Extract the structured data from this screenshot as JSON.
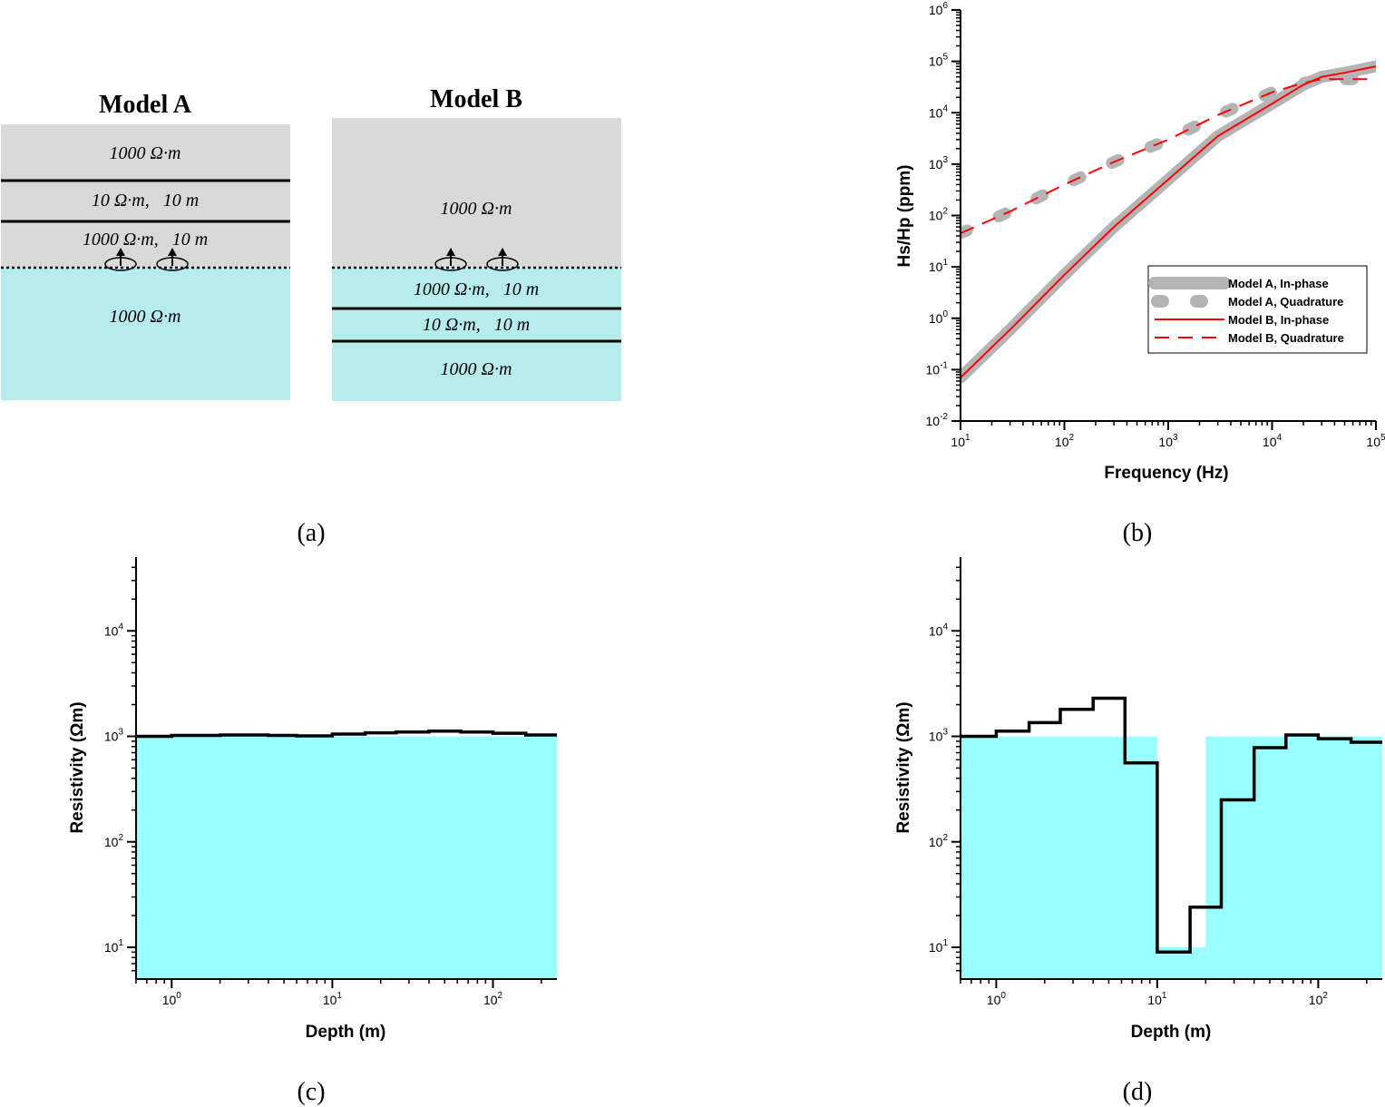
{
  "panel_a": {
    "caption": "(a)",
    "model_a": {
      "title": "Model A",
      "layers": [
        {
          "label": "1000 Ω·m",
          "medium": "air"
        },
        {
          "label": "10 Ω·m,   10 m",
          "medium": "air"
        },
        {
          "label": "1000 Ω·m,   10 m",
          "medium": "air"
        },
        {
          "label": "1000 Ω·m",
          "medium": "water"
        }
      ]
    },
    "model_b": {
      "title": "Model B",
      "layers": [
        {
          "label": "1000 Ω·m",
          "medium": "air"
        },
        {
          "label": "1000 Ω·m,   10 m",
          "medium": "water"
        },
        {
          "label": "10 Ω·m,   10 m",
          "medium": "water"
        },
        {
          "label": "1000 Ω·m",
          "medium": "water"
        }
      ]
    },
    "colors": {
      "air": "#d9d9d9",
      "water": "#b7ecec",
      "line": "#000000"
    }
  },
  "chart_data": [
    {
      "id": "b",
      "type": "line",
      "caption": "(b)",
      "xlabel": "Frequency (Hz)",
      "ylabel": "Hs/Hp (ppm)",
      "xscale": "log",
      "yscale": "log",
      "xlim": [
        10,
        100000
      ],
      "ylim": [
        0.01,
        1000000
      ],
      "xticks": [
        10,
        100,
        1000,
        10000,
        100000
      ],
      "yticks": [
        0.01,
        0.1,
        1,
        10,
        100,
        1000,
        10000,
        100000,
        1000000
      ],
      "legend_position": "bottom-right",
      "series": [
        {
          "name": "Model A, In-phase",
          "style": "thick-gray-solid",
          "color": "#b4b4b4",
          "x": [
            10,
            30,
            100,
            300,
            1000,
            3000,
            10000,
            20000,
            30000,
            50000,
            100000
          ],
          "y": [
            0.07,
            0.6,
            7,
            60,
            500,
            3500,
            15000,
            35000,
            50000,
            60000,
            80000
          ]
        },
        {
          "name": "Model A, Quadrature",
          "style": "thick-gray-dash",
          "color": "#b4b4b4",
          "x": [
            10,
            30,
            100,
            300,
            1000,
            3000,
            10000,
            20000,
            30000,
            50000,
            100000
          ],
          "y": [
            45,
            120,
            400,
            1100,
            3000,
            9000,
            25000,
            38000,
            45000,
            45000,
            45000
          ]
        },
        {
          "name": "Model B, In-phase",
          "style": "red-solid",
          "color": "#ff0000",
          "x": [
            10,
            30,
            100,
            300,
            1000,
            3000,
            10000,
            20000,
            30000,
            50000,
            100000
          ],
          "y": [
            0.07,
            0.6,
            7,
            60,
            500,
            3500,
            15000,
            35000,
            50000,
            60000,
            80000
          ]
        },
        {
          "name": "Model B, Quadrature",
          "style": "red-dash",
          "color": "#ff0000",
          "x": [
            10,
            30,
            100,
            300,
            1000,
            3000,
            10000,
            20000,
            30000,
            50000,
            100000
          ],
          "y": [
            45,
            120,
            400,
            1100,
            3000,
            9000,
            25000,
            38000,
            45000,
            45000,
            45000
          ]
        }
      ]
    },
    {
      "id": "c",
      "type": "area",
      "caption": "(c)",
      "xlabel": "Depth (m)",
      "ylabel": "Resistivity (Ωm)",
      "xscale": "log",
      "yscale": "log",
      "xlim": [
        0.6,
        250
      ],
      "ylim": [
        5,
        50000
      ],
      "xticks": [
        1,
        10,
        100
      ],
      "yticks": [
        10,
        100,
        1000,
        10000
      ],
      "true_model": {
        "color": "#99ffff",
        "x": [
          0.6,
          250
        ],
        "y": [
          1000,
          1000
        ]
      },
      "inverted_model": {
        "color": "#000000",
        "edges": [
          0.6,
          1,
          2,
          4,
          6,
          10,
          16,
          25,
          40,
          63,
          100,
          160,
          250
        ],
        "values": [
          1000,
          1020,
          1030,
          1020,
          1010,
          1050,
          1080,
          1100,
          1120,
          1100,
          1070,
          1030
        ]
      }
    },
    {
      "id": "d",
      "type": "area",
      "caption": "(d)",
      "xlabel": "Depth (m)",
      "ylabel": "Resistivity (Ωm)",
      "xscale": "log",
      "yscale": "log",
      "xlim": [
        0.6,
        250
      ],
      "ylim": [
        5,
        50000
      ],
      "xticks": [
        1,
        10,
        100
      ],
      "yticks": [
        10,
        100,
        1000,
        10000
      ],
      "true_model": {
        "color": "#99ffff",
        "x": [
          0.6,
          10,
          10,
          20,
          20,
          250
        ],
        "y": [
          1000,
          1000,
          10,
          10,
          1000,
          1000
        ]
      },
      "inverted_model": {
        "color": "#000000",
        "edges": [
          0.6,
          1,
          1.6,
          2.5,
          4,
          6.3,
          10,
          16,
          25,
          40,
          63,
          100,
          160,
          250
        ],
        "values": [
          1000,
          1120,
          1350,
          1800,
          2300,
          560,
          9,
          24,
          250,
          780,
          1030,
          950,
          880
        ]
      }
    }
  ]
}
